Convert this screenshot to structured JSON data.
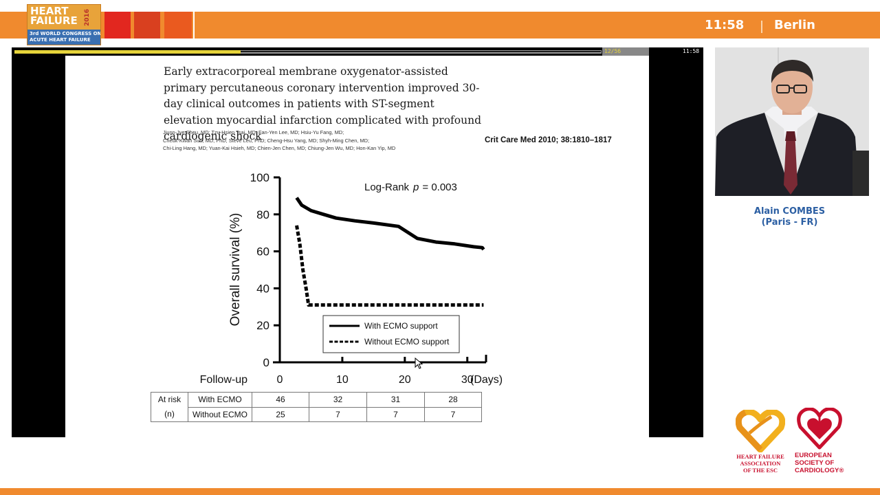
{
  "header": {
    "logo": {
      "line1": "HEART",
      "line2": "FAILURE",
      "year": "2016",
      "line3": "3rd WORLD CONGRESS ON",
      "line4": "ACUTE HEART FAILURE"
    },
    "time": "11:58",
    "city": "Berlin",
    "colors": {
      "band": "#f08a2e",
      "squares": [
        "#e2271f",
        "#d9401f",
        "#ea5a1f"
      ]
    }
  },
  "player": {
    "page_counter": "12/56",
    "video_time": "11:58",
    "progress": 0.385
  },
  "slide": {
    "paper_title": "Early extracorporeal membrane oxygenator-assisted primary percutaneous coronary intervention improved 30-day clinical outcomes in patients with ST-segment elevation myocardial infarction complicated with profound cardiogenic shock",
    "authors": [
      "Jiunn-Jye Sheu, MD; Tzu-Hsien Tsai, MD; Fan-Yen Lee, MD; Hsiu-Yu Fang, MD;",
      "Cheuk-Kwan Sun, MD, PhD; Steve Leu, PhD; Cheng-Hsu Yang, MD; Shyh-Ming Chen, MD;",
      "Chi-Ling Hang, MD; Yuan-Kai Hsieh, MD; Chien-Jen Chen, MD; Chiung-Jen Wu, MD; Hon-Kan Yip, MD"
    ],
    "journal": "Crit Care Med 2010; 38:1810–1817"
  },
  "chart_data": {
    "type": "line",
    "ylabel": "Overall survival (%)",
    "xlabel": "Follow-up",
    "x_unit": "(Days)",
    "annotation": "Log-Rank p = 0.003",
    "annotation_prefix": "Log-Rank",
    "annotation_p": "p",
    "annotation_value": "= 0.003",
    "ylim": [
      0,
      100
    ],
    "xlim": [
      0,
      33
    ],
    "yticks": [
      0,
      20,
      40,
      60,
      80,
      100
    ],
    "xticks": [
      0,
      10,
      20,
      30
    ],
    "legend_position": "inside lower-right",
    "series": [
      {
        "name": "With ECMO support",
        "style": "solid",
        "x": [
          2.7,
          3.5,
          5,
          7,
          9,
          12,
          15,
          19,
          22,
          25,
          28,
          31,
          32.4,
          32.6
        ],
        "y": [
          89,
          85,
          82,
          80,
          78,
          76.5,
          75.3,
          73.5,
          67,
          65,
          64,
          62.5,
          62,
          61
        ]
      },
      {
        "name": "Without ECMO support",
        "style": "dashed",
        "x": [
          2.7,
          3.2,
          3.7,
          4.2,
          4.6,
          5.5,
          10,
          20,
          30,
          32.6
        ],
        "y": [
          74,
          64,
          50,
          40,
          31,
          31,
          31,
          31,
          31,
          31
        ]
      }
    ],
    "at_risk": {
      "header": [
        "At risk",
        "(n)"
      ],
      "rows": [
        {
          "label": "With ECMO",
          "values": [
            "46",
            "32",
            "31",
            "28"
          ]
        },
        {
          "label": "Without ECMO",
          "values": [
            "25",
            "7",
            "7",
            "7"
          ]
        }
      ]
    }
  },
  "speaker": {
    "name": "Alain COMBES",
    "affiliation": "(Paris - FR)"
  },
  "footer_logos": {
    "hfa": [
      "HEART FAILURE",
      "ASSOCIATION",
      "OF THE ESC"
    ],
    "esc": [
      "EUROPEAN",
      "SOCIETY OF",
      "CARDIOLOGY®"
    ]
  }
}
